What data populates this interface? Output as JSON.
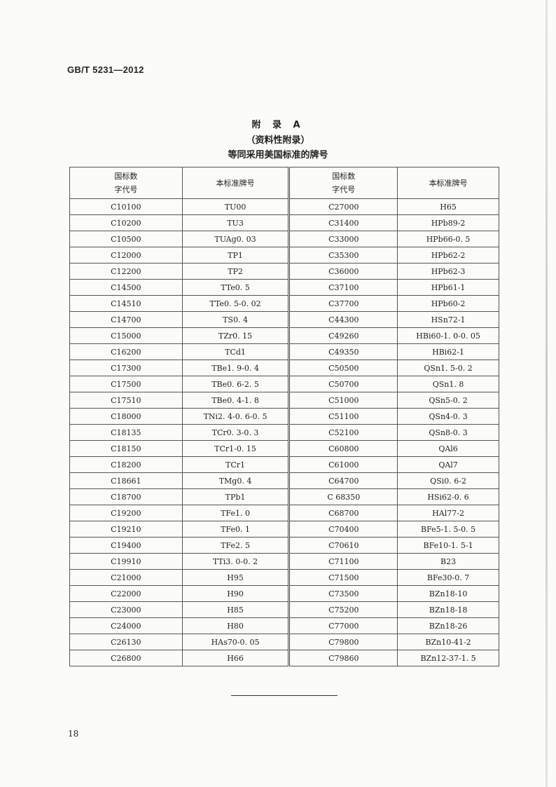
{
  "header": {
    "standard_no": "GB/T 5231—2012"
  },
  "title": {
    "line1": "附 录 A",
    "line2": "（资料性附录）",
    "line3": "等同采用美国标准的牌号"
  },
  "table": {
    "columns": [
      "国标数\n字代号",
      "本标准牌号",
      "国标数\n字代号",
      "本标准牌号"
    ],
    "left": [
      [
        "C10100",
        "TU00"
      ],
      [
        "C10200",
        "TU3"
      ],
      [
        "C10500",
        "TUAg0. 03"
      ],
      [
        "C12000",
        "TP1"
      ],
      [
        "C12200",
        "TP2"
      ],
      [
        "C14500",
        "TTe0. 5"
      ],
      [
        "C14510",
        "TTe0. 5-0. 02"
      ],
      [
        "C14700",
        "TS0. 4"
      ],
      [
        "C15000",
        "TZr0. 15"
      ],
      [
        "C16200",
        "TCd1"
      ],
      [
        "C17300",
        "TBe1. 9-0. 4"
      ],
      [
        "C17500",
        "TBe0. 6-2. 5"
      ],
      [
        "C17510",
        "TBe0. 4-1. 8"
      ],
      [
        "C18000",
        "TNi2. 4-0. 6-0. 5"
      ],
      [
        "C18135",
        "TCr0. 3-0. 3"
      ],
      [
        "C18150",
        "TCr1-0. 15"
      ],
      [
        "C18200",
        "TCr1"
      ],
      [
        "C18661",
        "TMg0. 4"
      ],
      [
        "C18700",
        "TPb1"
      ],
      [
        "C19200",
        "TFe1. 0"
      ],
      [
        "C19210",
        "TFe0. 1"
      ],
      [
        "C19400",
        "TFe2. 5"
      ],
      [
        "C19910",
        "TTi3. 0-0. 2"
      ],
      [
        "C21000",
        "H95"
      ],
      [
        "C22000",
        "H90"
      ],
      [
        "C23000",
        "H85"
      ],
      [
        "C24000",
        "H80"
      ],
      [
        "C26130",
        "HAs70-0. 05"
      ],
      [
        "C26800",
        "H66"
      ]
    ],
    "right": [
      [
        "C27000",
        "H65"
      ],
      [
        "C31400",
        "HPb89-2"
      ],
      [
        "C33000",
        "HPb66-0. 5"
      ],
      [
        "C35300",
        "HPb62-2"
      ],
      [
        "C36000",
        "HPb62-3"
      ],
      [
        "C37100",
        "HPb61-1"
      ],
      [
        "C37700",
        "HPb60-2"
      ],
      [
        "C44300",
        "HSn72-1"
      ],
      [
        "C49260",
        "HBi60-1. 0-0. 05"
      ],
      [
        "C49350",
        "HBi62-1"
      ],
      [
        "C50500",
        "QSn1. 5-0. 2"
      ],
      [
        "C50700",
        "QSn1. 8"
      ],
      [
        "C51000",
        "QSn5-0. 2"
      ],
      [
        "C51100",
        "QSn4-0. 3"
      ],
      [
        "C52100",
        "QSn8-0. 3"
      ],
      [
        "C60800",
        "QAl6"
      ],
      [
        "C61000",
        "QAl7"
      ],
      [
        "C64700",
        "QSi0. 6-2"
      ],
      [
        "C 68350",
        "HSi62-0. 6"
      ],
      [
        "C68700",
        "HAl77-2"
      ],
      [
        "C70400",
        "BFe5-1. 5-0. 5"
      ],
      [
        "C70610",
        "BFe10-1. 5-1"
      ],
      [
        "C71100",
        "B23"
      ],
      [
        "C71500",
        "BFe30-0. 7"
      ],
      [
        "C73500",
        "BZn18-10"
      ],
      [
        "C75200",
        "BZn18-18"
      ],
      [
        "C77000",
        "BZn18-26"
      ],
      [
        "C79800",
        "BZn10-41-2"
      ],
      [
        "C79860",
        "BZn12-37-1. 5"
      ]
    ]
  },
  "footer": {
    "page_number": "18"
  }
}
